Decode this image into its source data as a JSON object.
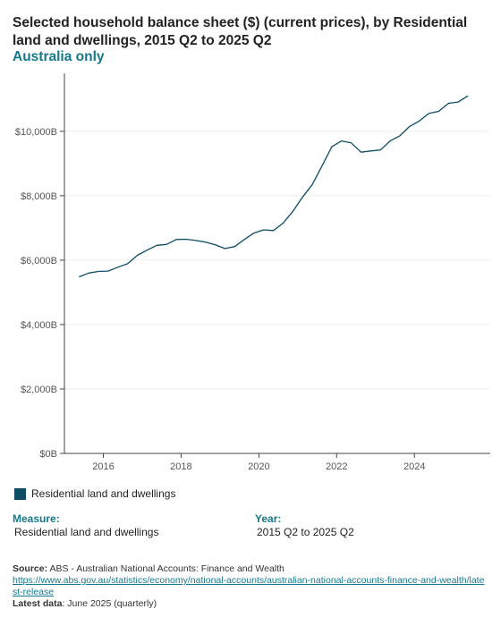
{
  "header": {
    "title": "Selected household balance sheet ($) (current prices), by Residential land and dwellings, 2015 Q2 to 2025 Q2",
    "subtitle": "Australia only"
  },
  "legend": {
    "label": "Residential land and dwellings",
    "color": "#0e4d64"
  },
  "filters": {
    "measure_heading": "Measure:",
    "measure_value": "Residential land and dwellings",
    "year_heading": "Year:",
    "year_value": "2015 Q2 to 2025 Q2"
  },
  "source": {
    "label": "Source:",
    "text": "ABS - Australian National Accounts: Finance and Wealth",
    "url": "https://www.abs.gov.au/statistics/economy/national-accounts/australian-national-accounts-finance-and-wealth/latest-release",
    "latest_label": "Latest data",
    "latest_text": ": June 2025 (quarterly)"
  },
  "chart_data": {
    "type": "line",
    "title": "Selected household balance sheet ($) (current prices), by Residential land and dwellings, 2015 Q2 to 2025 Q2",
    "xlabel": "",
    "ylabel": "",
    "ylim": [
      0,
      11800
    ],
    "xlim": [
      2015.0,
      2025.95
    ],
    "y_ticks": [
      0,
      2000,
      4000,
      6000,
      8000,
      10000
    ],
    "y_tick_labels": [
      "$0B",
      "$2,000B",
      "$4,000B",
      "$6,000B",
      "$8,000B",
      "$10,000B"
    ],
    "x_ticks": [
      2016,
      2018,
      2020,
      2022,
      2024
    ],
    "x_tick_labels": [
      "2016",
      "2018",
      "2020",
      "2022",
      "2024"
    ],
    "grid": true,
    "color": "#0e4d64",
    "series": [
      {
        "name": "Residential land and dwellings",
        "x": [
          "2015 Q2",
          "2015 Q3",
          "2015 Q4",
          "2016 Q1",
          "2016 Q2",
          "2016 Q3",
          "2016 Q4",
          "2017 Q1",
          "2017 Q2",
          "2017 Q3",
          "2017 Q4",
          "2018 Q1",
          "2018 Q2",
          "2018 Q3",
          "2018 Q4",
          "2019 Q1",
          "2019 Q2",
          "2019 Q3",
          "2019 Q4",
          "2020 Q1",
          "2020 Q2",
          "2020 Q3",
          "2020 Q4",
          "2021 Q1",
          "2021 Q2",
          "2021 Q3",
          "2021 Q4",
          "2022 Q1",
          "2022 Q2",
          "2022 Q3",
          "2022 Q4",
          "2023 Q1",
          "2023 Q2",
          "2023 Q3",
          "2023 Q4",
          "2024 Q1",
          "2024 Q2",
          "2024 Q3",
          "2024 Q4",
          "2025 Q1",
          "2025 Q2"
        ],
        "values": [
          5480,
          5600,
          5650,
          5660,
          5780,
          5890,
          6150,
          6310,
          6460,
          6490,
          6640,
          6650,
          6610,
          6560,
          6480,
          6360,
          6420,
          6640,
          6840,
          6940,
          6920,
          7150,
          7520,
          7960,
          8350,
          8930,
          9520,
          9700,
          9640,
          9350,
          9390,
          9420,
          9700,
          9860,
          10150,
          10320,
          10560,
          10620,
          10870,
          10910,
          11100
        ]
      }
    ]
  }
}
